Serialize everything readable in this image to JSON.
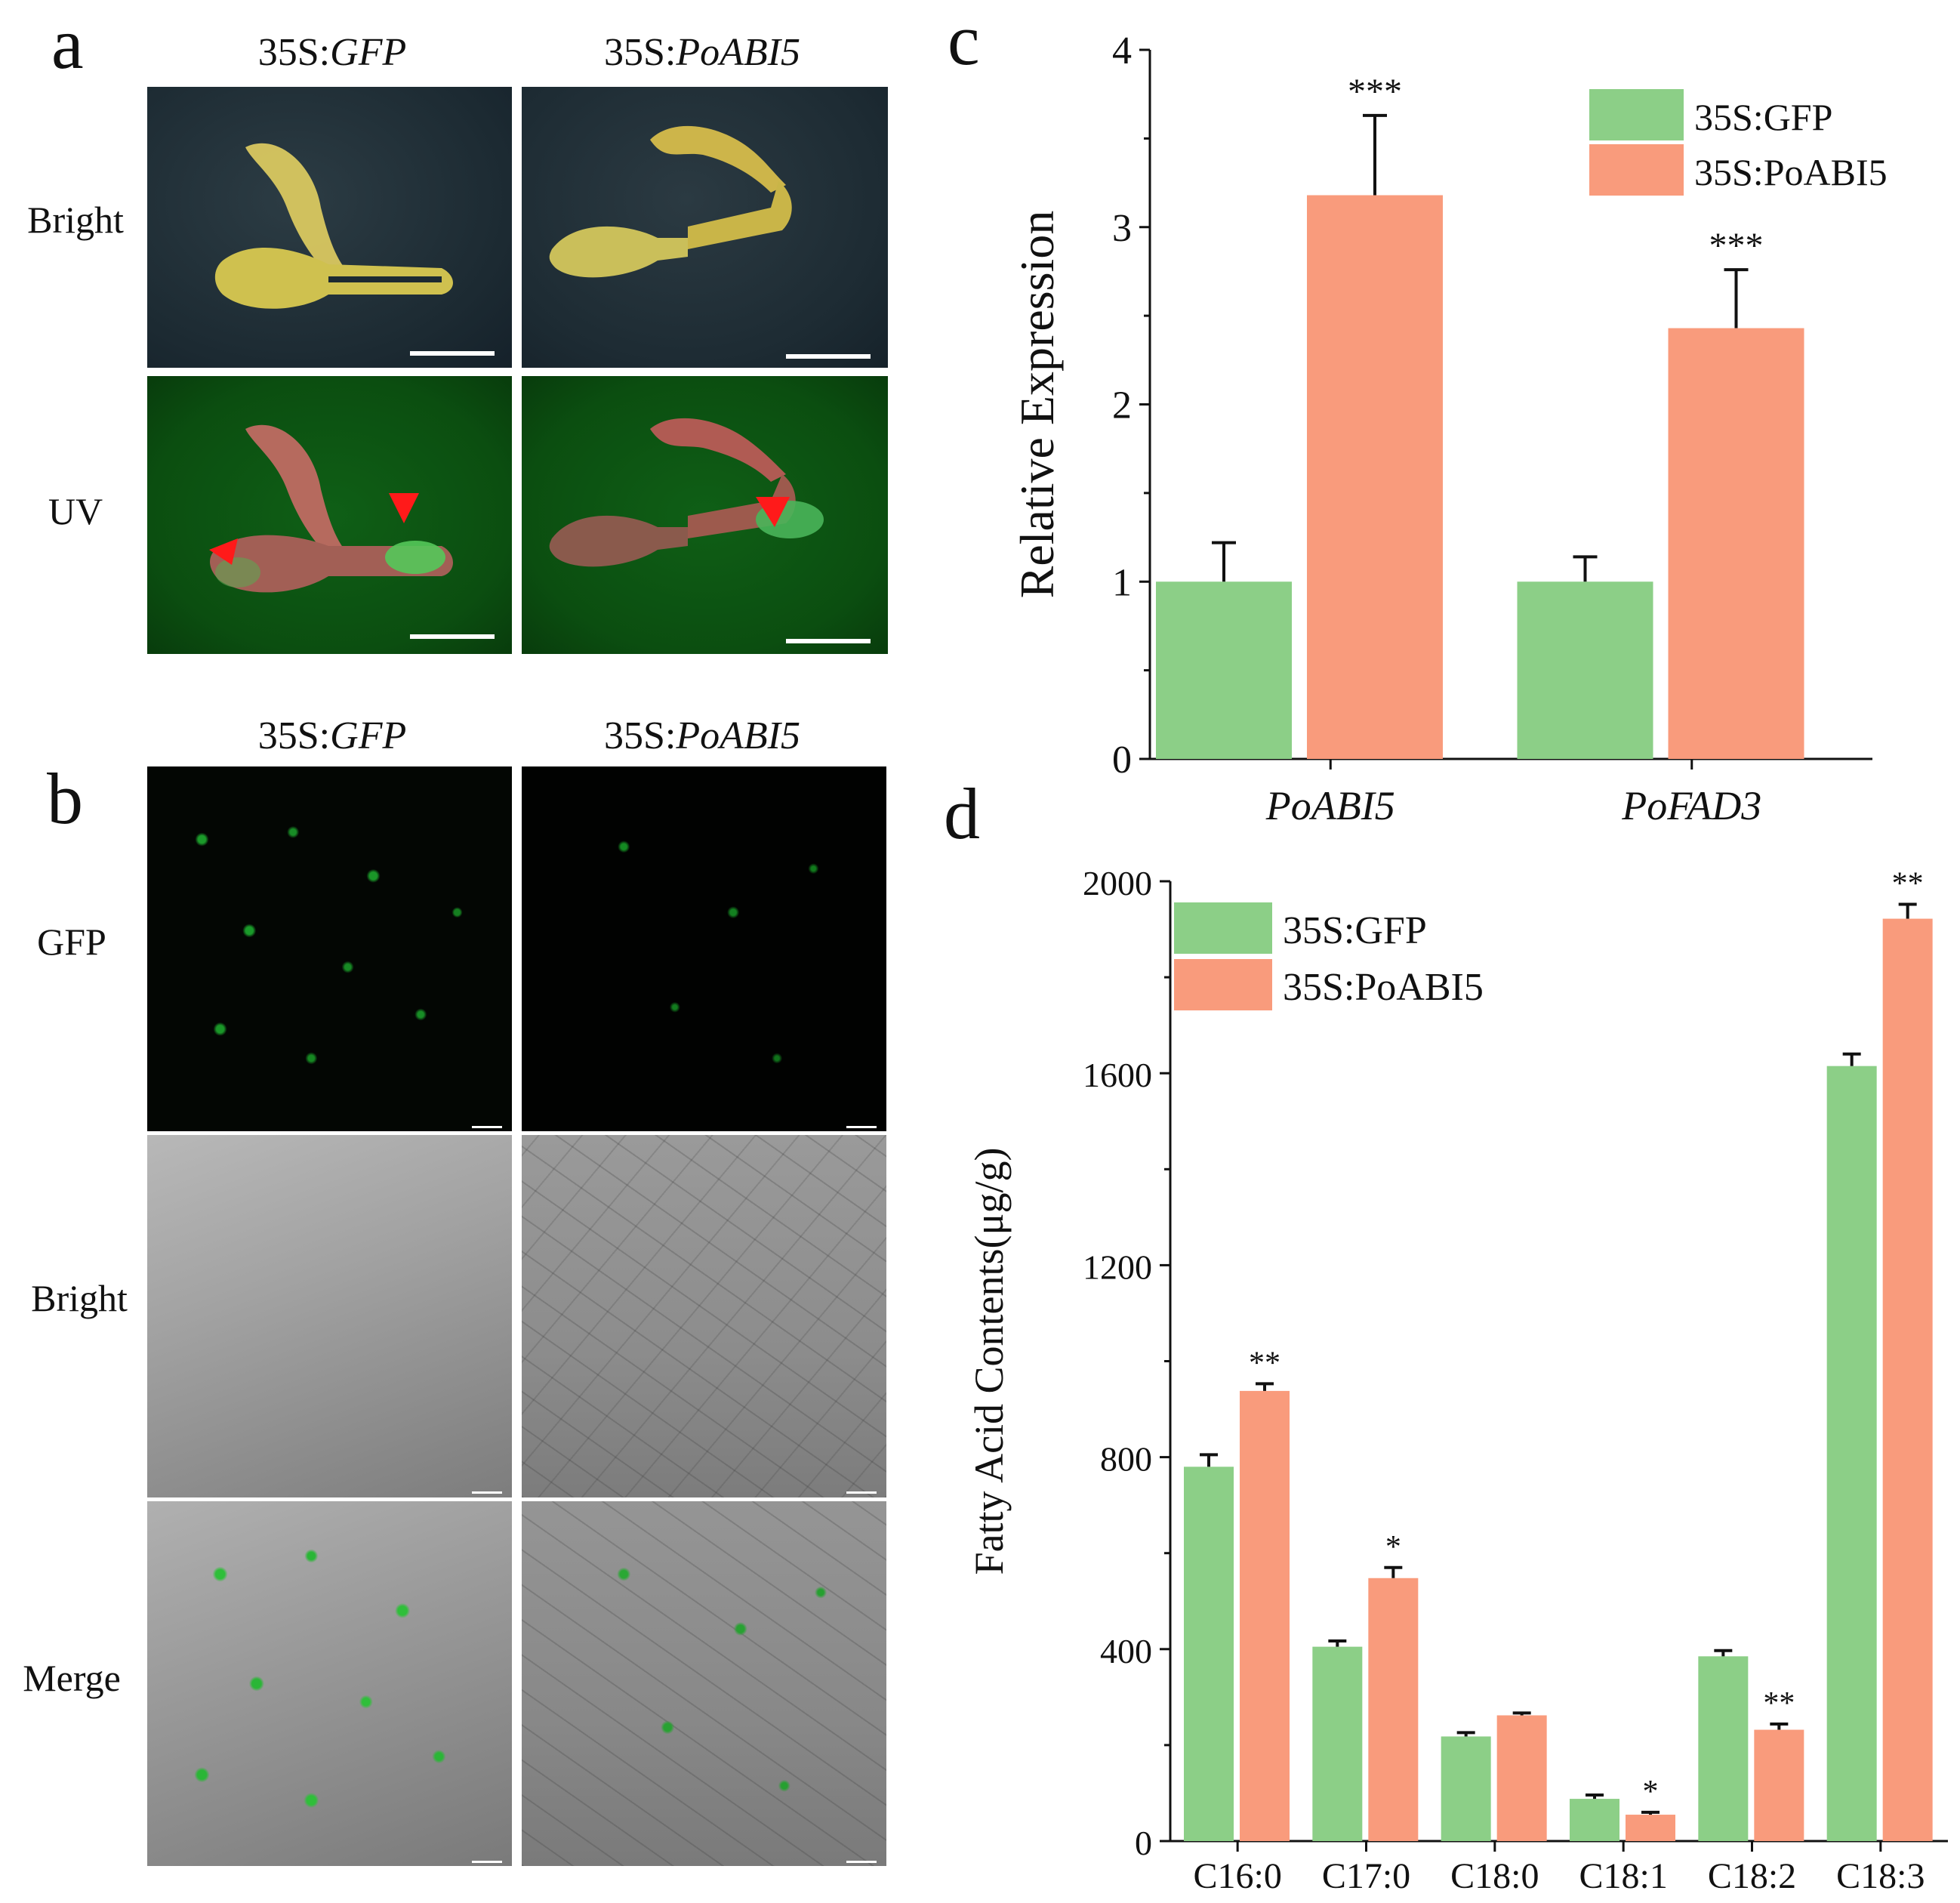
{
  "panel_a": {
    "letter": "a",
    "columns": [
      {
        "prefix": "35S:",
        "gene": "GFP"
      },
      {
        "prefix": "35S:",
        "gene": "PoABI5"
      }
    ],
    "rows": [
      "Bright",
      "UV"
    ]
  },
  "panel_b": {
    "letter": "b",
    "columns": [
      {
        "prefix": "35S:",
        "gene": "GFP"
      },
      {
        "prefix": "35S:",
        "gene": "PoABI5"
      }
    ],
    "rows": [
      "GFP",
      "Bright",
      "Merge"
    ]
  },
  "colors": {
    "gfp": "#8ccf87",
    "abi5": "#f99b7c",
    "photo_dark": "#1d2b33",
    "photo_green": "#0d5a12",
    "microscope_black": "#000000",
    "microscope_gray": "#8f8f8f"
  },
  "chart_data": [
    {
      "panel": "c",
      "type": "bar",
      "ylabel": "Relative Expression",
      "ylim": [
        0,
        4
      ],
      "yticks": [
        "0",
        "1",
        "2",
        "3",
        "4"
      ],
      "categories": [
        "PoABI5",
        "PoFAD3"
      ],
      "categories_italic": true,
      "series": [
        {
          "name": "35S:GFP",
          "values": [
            1.0,
            1.0
          ],
          "errors": [
            0.22,
            0.14
          ],
          "color": "#8ccf87"
        },
        {
          "name": "35S:PoABI5",
          "values": [
            3.18,
            2.43
          ],
          "errors": [
            0.45,
            0.33
          ],
          "color": "#f99b7c"
        }
      ],
      "annotations": [
        {
          "category": 0,
          "series": 1,
          "text": "***"
        },
        {
          "category": 1,
          "series": 1,
          "text": "***"
        }
      ],
      "legend": "top-right",
      "grid": false
    },
    {
      "panel": "d",
      "type": "bar",
      "ylabel": "Fatty Acid Contents(μg/g)",
      "ylim": [
        0,
        2000
      ],
      "yticks": [
        "0",
        "400",
        "800",
        "1200",
        "1600",
        "2000"
      ],
      "categories": [
        "C16:0",
        "C17:0",
        "C18:0",
        "C18:1",
        "C18:2",
        "C18:3"
      ],
      "categories_italic": false,
      "series": [
        {
          "name": "35S:GFP",
          "values": [
            780,
            405,
            218,
            88,
            385,
            1615
          ],
          "errors": [
            25,
            12,
            8,
            8,
            12,
            25
          ],
          "color": "#8ccf87"
        },
        {
          "name": "35S:PoABI5",
          "values": [
            938,
            548,
            262,
            55,
            232,
            1922
          ],
          "errors": [
            15,
            22,
            5,
            5,
            12,
            30
          ],
          "color": "#f99b7c"
        }
      ],
      "annotations": [
        {
          "category": 0,
          "series": 1,
          "text": "**"
        },
        {
          "category": 1,
          "series": 1,
          "text": "*"
        },
        {
          "category": 3,
          "series": 1,
          "text": "*"
        },
        {
          "category": 4,
          "series": 1,
          "text": "**"
        },
        {
          "category": 5,
          "series": 1,
          "text": "**"
        }
      ],
      "legend": "top-left",
      "grid": false
    }
  ]
}
